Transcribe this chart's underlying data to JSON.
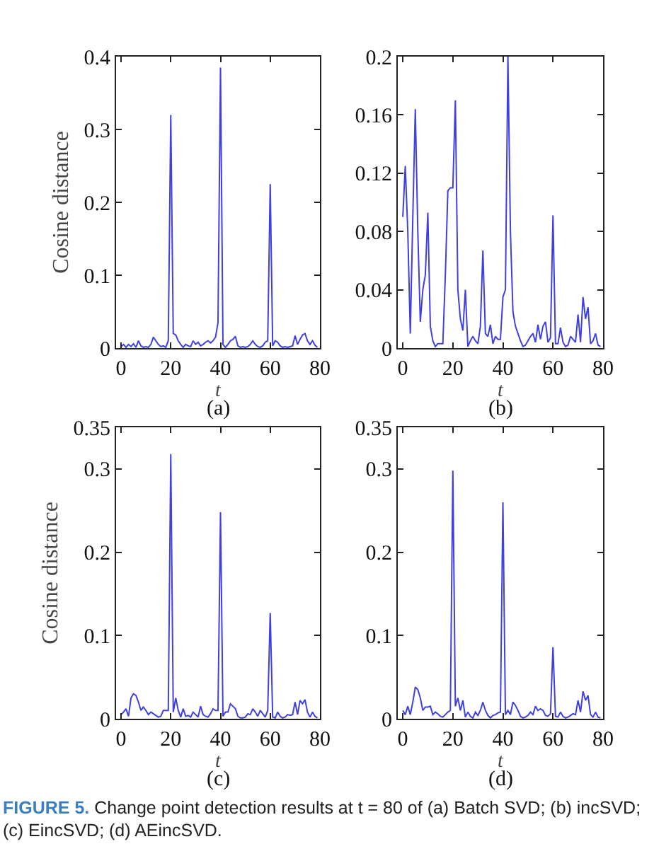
{
  "chart_data": [
    {
      "type": "line",
      "xlabel": "t",
      "ylabel": "Cosine distance",
      "annotations": [
        "(a)"
      ],
      "x": [
        0,
        1,
        2,
        3,
        4,
        5,
        6,
        7,
        8,
        9,
        10,
        11,
        12,
        13,
        14,
        15,
        16,
        17,
        18,
        19,
        20,
        21,
        22,
        23,
        24,
        25,
        26,
        27,
        28,
        29,
        30,
        31,
        32,
        33,
        34,
        35,
        36,
        37,
        38,
        39,
        40,
        41,
        42,
        43,
        44,
        45,
        46,
        47,
        48,
        49,
        50,
        51,
        52,
        53,
        54,
        55,
        56,
        57,
        58,
        59,
        60,
        61,
        62,
        63,
        64,
        65,
        66,
        67,
        68,
        69,
        70,
        71,
        72,
        73,
        74,
        75,
        76,
        77,
        78,
        79
      ],
      "series": [
        {
          "color": "#4040e0",
          "values": [
            0.002,
            0.005,
            0.001,
            0.005,
            0.002,
            0.006,
            0.001,
            0.01,
            0.003,
            0.001,
            0.002,
            0.001,
            0.005,
            0.015,
            0.01,
            0.005,
            0.002,
            0.003,
            0.001,
            0.01,
            0.32,
            0.02,
            0.018,
            0.01,
            0.005,
            0.001,
            0.005,
            0.003,
            0.002,
            0.01,
            0.005,
            0.008,
            0.003,
            0.005,
            0.008,
            0.01,
            0.007,
            0.01,
            0.015,
            0.035,
            0.385,
            0.005,
            0.001,
            0.005,
            0.01,
            0.012,
            0.016,
            0.003,
            0.001,
            0.002,
            0.001,
            0.002,
            0.005,
            0.01,
            0.005,
            0.002,
            0.001,
            0.003,
            0.008,
            0.01,
            0.225,
            0.003,
            0.01,
            0.008,
            0.003,
            0.001,
            0.002,
            0.001,
            0.002,
            0.003,
            0.017,
            0.005,
            0.012,
            0.018,
            0.02,
            0.01,
            0.005,
            0.01,
            0.004,
            0.001
          ]
        }
      ],
      "xlim": [
        -2,
        80
      ],
      "xticks": [
        0,
        20,
        40,
        60,
        80
      ],
      "ylim": [
        0,
        0.4
      ],
      "yticks": [
        0,
        0.1,
        0.2,
        0.3,
        0.4
      ],
      "grid": false,
      "marker": "none",
      "line_style": "solid"
    },
    {
      "type": "line",
      "xlabel": "t",
      "annotations": [
        "(b)"
      ],
      "x": [
        0,
        1,
        2,
        3,
        4,
        5,
        6,
        7,
        8,
        9,
        10,
        11,
        12,
        13,
        14,
        15,
        16,
        17,
        18,
        19,
        20,
        21,
        22,
        23,
        24,
        25,
        26,
        27,
        28,
        29,
        30,
        31,
        32,
        33,
        34,
        35,
        36,
        37,
        38,
        39,
        40,
        41,
        42,
        43,
        44,
        45,
        46,
        47,
        48,
        49,
        50,
        51,
        52,
        53,
        54,
        55,
        56,
        57,
        58,
        59,
        60,
        61,
        62,
        63,
        64,
        65,
        66,
        67,
        68,
        69,
        70,
        71,
        72,
        73,
        74,
        75,
        76,
        77,
        78,
        79
      ],
      "series": [
        {
          "color": "#4040e0",
          "values": [
            0.09,
            0.125,
            0.08,
            0.01,
            0.09,
            0.164,
            0.08,
            0.018,
            0.04,
            0.05,
            0.093,
            0.015,
            0.005,
            0.001,
            0.003,
            0.003,
            0.003,
            0.05,
            0.108,
            0.11,
            0.11,
            0.17,
            0.04,
            0.02,
            0.012,
            0.04,
            0.001,
            0.005,
            0.008,
            0.005,
            0.003,
            0.015,
            0.067,
            0.01,
            0.008,
            0.016,
            0.003,
            0.008,
            0.006,
            0.006,
            0.035,
            0.04,
            0.2,
            0.08,
            0.025,
            0.015,
            0.01,
            0.005,
            0.001,
            0.002,
            0.005,
            0.008,
            0.01,
            0.004,
            0.016,
            0.006,
            0.015,
            0.018,
            0.004,
            0.007,
            0.091,
            0.003,
            0.003,
            0.014,
            0.004,
            0.001,
            0.002,
            0.008,
            0.006,
            0.004,
            0.023,
            0.004,
            0.035,
            0.02,
            0.028,
            0.003,
            0.005,
            0.01,
            0.002,
            0.001
          ]
        }
      ],
      "xlim": [
        -2,
        80
      ],
      "xticks": [
        0,
        20,
        40,
        60,
        80
      ],
      "ylim": [
        0,
        0.2
      ],
      "yticks": [
        0,
        0.04,
        0.08,
        0.12,
        0.16,
        0.2
      ],
      "grid": false,
      "marker": "none",
      "line_style": "solid"
    },
    {
      "type": "line",
      "xlabel": "t",
      "ylabel": "Cosine distance",
      "annotations": [
        "(c)"
      ],
      "x": [
        0,
        1,
        2,
        3,
        4,
        5,
        6,
        7,
        8,
        9,
        10,
        11,
        12,
        13,
        14,
        15,
        16,
        17,
        18,
        19,
        20,
        21,
        22,
        23,
        24,
        25,
        26,
        27,
        28,
        29,
        30,
        31,
        32,
        33,
        34,
        35,
        36,
        37,
        38,
        39,
        40,
        41,
        42,
        43,
        44,
        45,
        46,
        47,
        48,
        49,
        50,
        51,
        52,
        53,
        54,
        55,
        56,
        57,
        58,
        59,
        60,
        61,
        62,
        63,
        64,
        65,
        66,
        67,
        68,
        69,
        70,
        71,
        72,
        73,
        74,
        75,
        76,
        77,
        78,
        79
      ],
      "series": [
        {
          "color": "#4040e0",
          "values": [
            0.005,
            0.008,
            0.012,
            0.003,
            0.025,
            0.03,
            0.028,
            0.02,
            0.01,
            0.014,
            0.01,
            0.005,
            0.008,
            0.006,
            0.004,
            0.002,
            0.003,
            0.01,
            0.01,
            0.01,
            0.318,
            0.008,
            0.025,
            0.01,
            0.002,
            0.012,
            0.003,
            0.004,
            0.002,
            0.008,
            0.005,
            0.002,
            0.015,
            0.005,
            0.003,
            0.002,
            0.006,
            0.012,
            0.01,
            0.01,
            0.248,
            0.003,
            0.008,
            0.008,
            0.018,
            0.015,
            0.012,
            0.003,
            0.001,
            0.001,
            0.002,
            0.006,
            0.005,
            0.012,
            0.008,
            0.003,
            0.01,
            0.006,
            0.002,
            0.01,
            0.127,
            0.002,
            0.001,
            0.008,
            0.003,
            0.001,
            0.002,
            0.005,
            0.004,
            0.005,
            0.02,
            0.005,
            0.022,
            0.018,
            0.023,
            0.008,
            0.002,
            0.008,
            0.003,
            0.001
          ]
        }
      ],
      "xlim": [
        -2,
        80
      ],
      "xticks": [
        0,
        20,
        40,
        60,
        80
      ],
      "ylim": [
        0,
        0.35
      ],
      "yticks": [
        0,
        0.1,
        0.2,
        0.3,
        0.35
      ],
      "grid": false,
      "marker": "none",
      "line_style": "solid"
    },
    {
      "type": "line",
      "xlabel": "t",
      "annotations": [
        "(d)",
        "FIGURE 5.",
        "Change point detection results at t = 80 of (a) Batch SVD; (b) incSVD; (c) EincSVD; (d) AEincSVD."
      ],
      "x": [
        0,
        1,
        2,
        3,
        4,
        5,
        6,
        7,
        8,
        9,
        10,
        11,
        12,
        13,
        14,
        15,
        16,
        17,
        18,
        19,
        20,
        21,
        22,
        23,
        24,
        25,
        26,
        27,
        28,
        29,
        30,
        31,
        32,
        33,
        34,
        35,
        36,
        37,
        38,
        39,
        40,
        41,
        42,
        43,
        44,
        45,
        46,
        47,
        48,
        49,
        50,
        51,
        52,
        53,
        54,
        55,
        56,
        57,
        58,
        59,
        60,
        61,
        62,
        63,
        64,
        65,
        66,
        67,
        68,
        69,
        70,
        71,
        72,
        73,
        74,
        75,
        76,
        77,
        78,
        79
      ],
      "series": [
        {
          "color": "#4040e0",
          "values": [
            0.01,
            0.005,
            0.015,
            0.005,
            0.02,
            0.038,
            0.035,
            0.025,
            0.01,
            0.014,
            0.014,
            0.015,
            0.005,
            0.008,
            0.006,
            0.003,
            0.002,
            0.005,
            0.008,
            0.01,
            0.298,
            0.015,
            0.025,
            0.01,
            0.022,
            0.002,
            0.008,
            0.003,
            0.001,
            0.008,
            0.004,
            0.01,
            0.02,
            0.01,
            0.004,
            0.001,
            0.004,
            0.005,
            0.007,
            0.008,
            0.26,
            0.005,
            0.01,
            0.005,
            0.02,
            0.016,
            0.01,
            0.003,
            0.001,
            0.002,
            0.004,
            0.008,
            0.005,
            0.015,
            0.01,
            0.012,
            0.01,
            0.004,
            0.003,
            0.006,
            0.086,
            0.003,
            0.002,
            0.008,
            0.003,
            0.001,
            0.002,
            0.004,
            0.006,
            0.005,
            0.022,
            0.008,
            0.033,
            0.022,
            0.028,
            0.005,
            0.002,
            0.008,
            0.002,
            0.001
          ]
        }
      ],
      "xlim": [
        -2,
        80
      ],
      "xticks": [
        0,
        20,
        40,
        60,
        80
      ],
      "ylim": [
        0,
        0.35
      ],
      "yticks": [
        0,
        0.1,
        0.2,
        0.3,
        0.35
      ],
      "grid": false,
      "marker": "none",
      "line_style": "solid"
    }
  ]
}
